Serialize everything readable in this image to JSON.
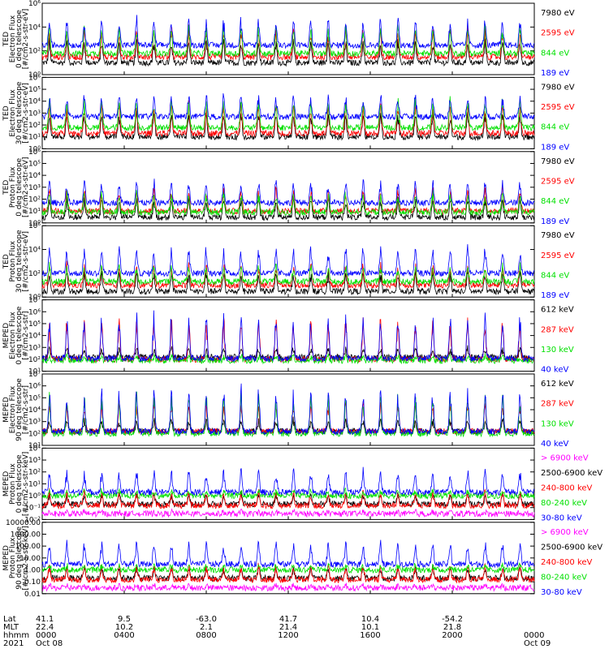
{
  "colors": {
    "black": "#000000",
    "blue": "#0000ff",
    "red": "#ff0000",
    "green": "#00e000",
    "magenta": "#ff00ff"
  },
  "chart_data": [
    {
      "type": "line",
      "ylabel": [
        "TED",
        "Electron Flux",
        "0 deg telescope",
        "[#/cm2-s-str-eV]"
      ],
      "yscale": "log",
      "ylim": [
        1,
        1000000
      ],
      "ytick_labels": [
        "10⁰",
        "10²",
        "10⁴",
        "10⁶"
      ],
      "series": [
        {
          "name": "7980 eV",
          "color": "black",
          "base": 10,
          "peak": 1000
        },
        {
          "name": "2595 eV",
          "color": "red",
          "base": 30,
          "peak": 10000
        },
        {
          "name": "844 eV",
          "color": "green",
          "base": 60,
          "peak": 20000
        },
        {
          "name": "189 eV",
          "color": "blue",
          "base": 300,
          "peak": 80000
        }
      ]
    },
    {
      "type": "line",
      "ylabel": [
        "TED",
        "Electron Flux",
        "30 deg telescope",
        "[#/cm2-s-str-eV]"
      ],
      "yscale": "log",
      "ylim": [
        1,
        1000000
      ],
      "ytick_labels": [
        "10⁰",
        "10¹",
        "10²",
        "10³",
        "10⁴",
        "10⁵",
        "10⁶"
      ],
      "series": [
        {
          "name": "7980 eV",
          "color": "black",
          "base": 10,
          "peak": 2000
        },
        {
          "name": "2595 eV",
          "color": "red",
          "base": 20,
          "peak": 10000
        },
        {
          "name": "844 eV",
          "color": "green",
          "base": 60,
          "peak": 20000
        },
        {
          "name": "189 eV",
          "color": "blue",
          "base": 500,
          "peak": 50000
        }
      ]
    },
    {
      "type": "line",
      "ylabel": [
        "TED",
        "Proton Flux",
        "0 deg telescope",
        "[#/cm2-s-str-eV]"
      ],
      "yscale": "log",
      "ylim": [
        1,
        1000000
      ],
      "ytick_labels": [
        "10⁰",
        "10¹",
        "10²",
        "10³",
        "10⁴",
        "10⁵",
        "10⁶"
      ],
      "series": [
        {
          "name": "7980 eV",
          "color": "black",
          "base": 3,
          "peak": 200
        },
        {
          "name": "2595 eV",
          "color": "red",
          "base": 10,
          "peak": 1000
        },
        {
          "name": "844 eV",
          "color": "green",
          "base": 8,
          "peak": 500
        },
        {
          "name": "189 eV",
          "color": "blue",
          "base": 50,
          "peak": 5000
        }
      ]
    },
    {
      "type": "line",
      "ylabel": [
        "TED",
        "Proton Flux",
        "30 deg telescope",
        "[#/cm2-s-str-eV]"
      ],
      "yscale": "log",
      "ylim": [
        1,
        1000000
      ],
      "ytick_labels": [
        "10⁰",
        "10²",
        "10⁴",
        "10⁶"
      ],
      "series": [
        {
          "name": "7980 eV",
          "color": "black",
          "base": 3,
          "peak": 200
        },
        {
          "name": "2595 eV",
          "color": "red",
          "base": 10,
          "peak": 800
        },
        {
          "name": "844 eV",
          "color": "green",
          "base": 20,
          "peak": 600
        },
        {
          "name": "189 eV",
          "color": "blue",
          "base": 100,
          "peak": 20000
        }
      ]
    },
    {
      "type": "line",
      "ylabel": [
        "MEPED",
        "Electron Flux",
        "0 deg telescope",
        "[#/cm2-s-str]"
      ],
      "yscale": "log",
      "ylim": [
        10,
        10000000
      ],
      "ytick_labels": [
        "10¹",
        "10²",
        "10³",
        "10⁴",
        "10⁵",
        "10⁶",
        "10⁷"
      ],
      "series": [
        {
          "name": "612 keV",
          "color": "black",
          "base": 150,
          "peak": 1000
        },
        {
          "name": "287 keV",
          "color": "red",
          "base": 100,
          "peak": 500000
        },
        {
          "name": "130 keV",
          "color": "green",
          "base": 80,
          "peak": 200
        },
        {
          "name": "40 keV",
          "color": "blue",
          "base": 120,
          "peak": 1000000
        }
      ]
    },
    {
      "type": "line",
      "ylabel": [
        "MEPED",
        "Electron Flux",
        "90 deg telescope",
        "[#/cm2-s-str]"
      ],
      "yscale": "log",
      "ylim": [
        10,
        10000000
      ],
      "ytick_labels": [
        "10¹",
        "10²",
        "10³",
        "10⁴",
        "10⁵",
        "10⁶",
        "10⁷"
      ],
      "series": [
        {
          "name": "612 keV",
          "color": "black",
          "base": 150,
          "peak": 2000
        },
        {
          "name": "287 keV",
          "color": "red",
          "base": 150,
          "peak": 100000
        },
        {
          "name": "130 keV",
          "color": "green",
          "base": 100,
          "peak": 300000
        },
        {
          "name": "40 keV",
          "color": "blue",
          "base": 150,
          "peak": 1000000
        }
      ]
    },
    {
      "type": "line",
      "ylabel": [
        "MEPED",
        "Proton Flux",
        "0 deg telescope",
        "[#/cm2-s-str-keV]"
      ],
      "yscale": "log",
      "ylim": [
        0.01,
        10000
      ],
      "ytick_labels": [
        "10⁻²",
        "10⁻¹",
        "10⁰",
        "10¹",
        "10²",
        "10³",
        "10⁴"
      ],
      "series": [
        {
          "name": "> 6900 keV",
          "color": "magenta",
          "base": 0.03,
          "peak": 0.05
        },
        {
          "name": "2500-6900 keV",
          "color": "black",
          "base": 0.2,
          "peak": 2
        },
        {
          "name": "240-800 keV",
          "color": "red",
          "base": 0.15,
          "peak": 3
        },
        {
          "name": "80-240 keV",
          "color": "green",
          "base": 1,
          "peak": 3
        },
        {
          "name": "30-80 keV",
          "color": "blue",
          "base": 2,
          "peak": 200
        }
      ]
    },
    {
      "type": "line",
      "ylabel": [
        "MEPED",
        "Proton Flux",
        "90 deg telescope",
        "[#/cm2-s-str-keV]"
      ],
      "yscale": "log",
      "ylim": [
        0.01,
        10000
      ],
      "ytick_labels": [
        "0.01",
        "0.10",
        "1.00",
        "10.00",
        "100.00",
        "1000.00",
        "10000.00"
      ],
      "series": [
        {
          "name": "> 6900 keV",
          "color": "magenta",
          "base": 0.03,
          "peak": 0.06
        },
        {
          "name": "2500-6900 keV",
          "color": "black",
          "base": 0.2,
          "peak": 2
        },
        {
          "name": "240-800 keV",
          "color": "red",
          "base": 0.15,
          "peak": 3
        },
        {
          "name": "80-240 keV",
          "color": "green",
          "base": 1,
          "peak": 3
        },
        {
          "name": "30-80 keV",
          "color": "blue",
          "base": 3,
          "peak": 300
        }
      ]
    }
  ],
  "x_axis": {
    "row_labels": [
      "Lat",
      "MLT",
      "hhmm",
      "2021"
    ],
    "ticks": [
      {
        "hour": 0,
        "lat": "41.1",
        "mlt": "22.4",
        "hhmm": "0000",
        "date": "Oct 08"
      },
      {
        "hour": 4,
        "lat": "9.5",
        "mlt": "10.2",
        "hhmm": "0400",
        "date": ""
      },
      {
        "hour": 8,
        "lat": "-63.0",
        "mlt": "2.1",
        "hhmm": "0800",
        "date": ""
      },
      {
        "hour": 12,
        "lat": "41.7",
        "mlt": "21.4",
        "hhmm": "1200",
        "date": ""
      },
      {
        "hour": 16,
        "lat": "10.4",
        "mlt": "10.1",
        "hhmm": "1600",
        "date": ""
      },
      {
        "hour": 20,
        "lat": "-54.2",
        "mlt": "21.8",
        "hhmm": "2000",
        "date": ""
      },
      {
        "hour": 24,
        "lat": "",
        "mlt": "",
        "hhmm": "0000",
        "date": "Oct 09"
      }
    ]
  }
}
